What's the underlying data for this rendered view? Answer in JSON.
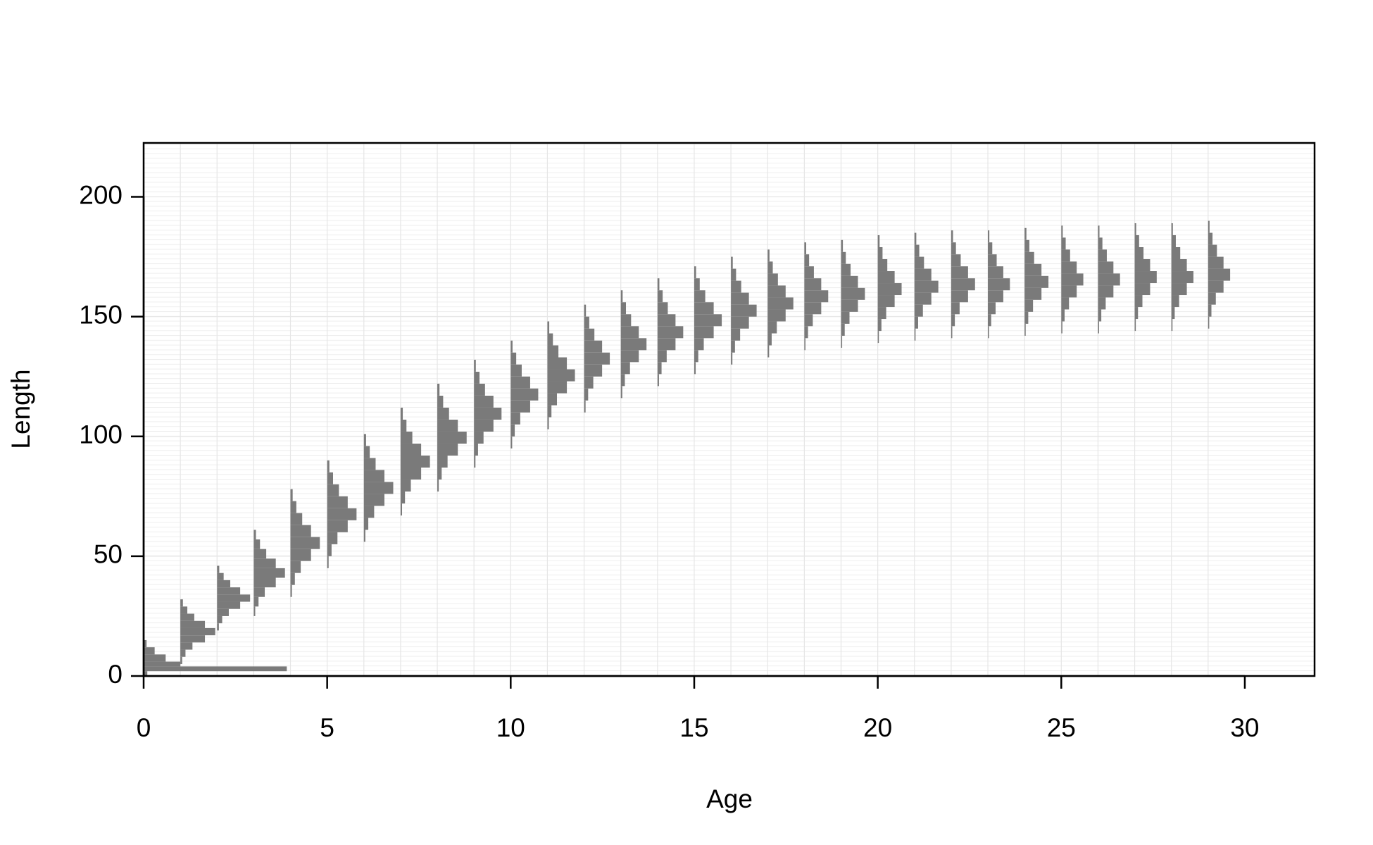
{
  "chart_data": {
    "type": "age-length-histograms",
    "xlabel": "Age",
    "ylabel": "Length",
    "xlim": [
      0,
      31.9
    ],
    "ylim": [
      0,
      222.5
    ],
    "xticks": [
      0,
      5,
      10,
      15,
      20,
      25,
      30
    ],
    "yticks": [
      0,
      50,
      100,
      150,
      200
    ],
    "color": "#7a7a7a",
    "grid": true,
    "distributions": [
      {
        "age": 0,
        "bins": [
          0,
          2,
          4,
          6,
          9,
          12,
          15
        ],
        "widths": [
          0.1,
          3.9,
          1.0,
          0.6,
          0.3,
          0.08
        ]
      },
      {
        "age": 1,
        "bins": [
          5,
          8,
          11,
          14,
          17,
          20,
          23,
          26,
          29,
          32
        ],
        "widths": [
          0.05,
          0.14,
          0.33,
          0.67,
          0.95,
          0.67,
          0.38,
          0.19,
          0.07
        ]
      },
      {
        "age": 2,
        "bins": [
          19,
          22,
          25,
          28,
          31,
          34,
          37,
          40,
          43,
          46
        ],
        "widths": [
          0.05,
          0.14,
          0.32,
          0.63,
          0.9,
          0.63,
          0.36,
          0.18,
          0.06
        ]
      },
      {
        "age": 3,
        "bins": [
          25,
          29,
          33,
          37,
          41,
          45,
          49,
          53,
          57,
          61
        ],
        "widths": [
          0.04,
          0.13,
          0.3,
          0.6,
          0.85,
          0.6,
          0.34,
          0.17,
          0.06
        ]
      },
      {
        "age": 4,
        "bins": [
          33,
          38,
          43,
          48,
          53,
          58,
          63,
          68,
          73,
          78
        ],
        "widths": [
          0.04,
          0.12,
          0.28,
          0.56,
          0.8,
          0.56,
          0.32,
          0.16,
          0.06
        ]
      },
      {
        "age": 5,
        "bins": [
          45,
          50,
          55,
          60,
          65,
          70,
          75,
          80,
          85,
          90
        ],
        "widths": [
          0.04,
          0.12,
          0.28,
          0.56,
          0.8,
          0.56,
          0.32,
          0.16,
          0.06
        ]
      },
      {
        "age": 6,
        "bins": [
          56,
          61,
          66,
          71,
          76,
          81,
          86,
          91,
          96,
          101
        ],
        "widths": [
          0.04,
          0.12,
          0.28,
          0.56,
          0.8,
          0.56,
          0.32,
          0.16,
          0.06
        ]
      },
      {
        "age": 7,
        "bins": [
          67,
          72,
          77,
          82,
          87,
          92,
          97,
          102,
          107,
          112
        ],
        "widths": [
          0.04,
          0.12,
          0.28,
          0.56,
          0.8,
          0.56,
          0.32,
          0.16,
          0.06
        ]
      },
      {
        "age": 8,
        "bins": [
          77,
          82,
          87,
          92,
          97,
          102,
          107,
          112,
          117,
          122
        ],
        "widths": [
          0.04,
          0.12,
          0.28,
          0.56,
          0.8,
          0.56,
          0.32,
          0.16,
          0.06
        ]
      },
      {
        "age": 9,
        "bins": [
          87,
          92,
          97,
          102,
          107,
          112,
          117,
          122,
          127,
          132
        ],
        "widths": [
          0.04,
          0.11,
          0.26,
          0.53,
          0.75,
          0.53,
          0.3,
          0.15,
          0.05
        ]
      },
      {
        "age": 10,
        "bins": [
          95,
          100,
          105,
          110,
          115,
          120,
          125,
          130,
          135,
          140
        ],
        "widths": [
          0.04,
          0.11,
          0.26,
          0.53,
          0.75,
          0.53,
          0.3,
          0.15,
          0.05
        ]
      },
      {
        "age": 11,
        "bins": [
          103,
          108,
          113,
          118,
          123,
          128,
          133,
          138,
          143,
          148
        ],
        "widths": [
          0.04,
          0.11,
          0.26,
          0.53,
          0.75,
          0.53,
          0.3,
          0.15,
          0.05
        ]
      },
      {
        "age": 12,
        "bins": [
          110,
          115,
          120,
          125,
          130,
          135,
          140,
          145,
          150,
          155
        ],
        "widths": [
          0.04,
          0.11,
          0.25,
          0.49,
          0.7,
          0.49,
          0.28,
          0.14,
          0.05
        ]
      },
      {
        "age": 13,
        "bins": [
          116,
          121,
          126,
          131,
          136,
          141,
          146,
          151,
          156,
          161
        ],
        "widths": [
          0.04,
          0.11,
          0.25,
          0.49,
          0.7,
          0.49,
          0.28,
          0.14,
          0.05
        ]
      },
      {
        "age": 14,
        "bins": [
          121,
          126,
          131,
          136,
          141,
          146,
          151,
          156,
          161,
          166
        ],
        "widths": [
          0.04,
          0.11,
          0.25,
          0.49,
          0.7,
          0.49,
          0.28,
          0.14,
          0.05
        ]
      },
      {
        "age": 15,
        "bins": [
          126,
          131,
          136,
          141,
          146,
          151,
          156,
          161,
          166,
          171
        ],
        "widths": [
          0.04,
          0.11,
          0.26,
          0.53,
          0.75,
          0.53,
          0.3,
          0.15,
          0.05
        ]
      },
      {
        "age": 16,
        "bins": [
          130,
          135,
          140,
          145,
          150,
          155,
          160,
          165,
          170,
          175
        ],
        "widths": [
          0.04,
          0.11,
          0.25,
          0.49,
          0.7,
          0.49,
          0.28,
          0.14,
          0.05
        ]
      },
      {
        "age": 17,
        "bins": [
          133,
          138,
          143,
          148,
          153,
          158,
          163,
          168,
          173,
          178
        ],
        "widths": [
          0.04,
          0.11,
          0.25,
          0.49,
          0.7,
          0.49,
          0.28,
          0.14,
          0.05
        ]
      },
      {
        "age": 18,
        "bins": [
          136,
          141,
          146,
          151,
          156,
          161,
          166,
          171,
          176,
          181
        ],
        "widths": [
          0.03,
          0.1,
          0.23,
          0.46,
          0.65,
          0.46,
          0.26,
          0.13,
          0.05
        ]
      },
      {
        "age": 19,
        "bins": [
          137,
          142,
          147,
          152,
          157,
          162,
          167,
          172,
          177,
          182
        ],
        "widths": [
          0.03,
          0.1,
          0.23,
          0.46,
          0.65,
          0.46,
          0.26,
          0.13,
          0.05
        ]
      },
      {
        "age": 20,
        "bins": [
          139,
          144,
          149,
          154,
          159,
          164,
          169,
          174,
          179,
          184
        ],
        "widths": [
          0.03,
          0.1,
          0.23,
          0.46,
          0.65,
          0.46,
          0.26,
          0.13,
          0.05
        ]
      },
      {
        "age": 21,
        "bins": [
          140,
          145,
          150,
          155,
          160,
          165,
          170,
          175,
          180,
          185
        ],
        "widths": [
          0.03,
          0.1,
          0.23,
          0.46,
          0.65,
          0.46,
          0.26,
          0.13,
          0.05
        ]
      },
      {
        "age": 22,
        "bins": [
          141,
          146,
          151,
          156,
          161,
          166,
          171,
          176,
          181,
          186
        ],
        "widths": [
          0.03,
          0.1,
          0.23,
          0.46,
          0.65,
          0.46,
          0.26,
          0.13,
          0.05
        ]
      },
      {
        "age": 23,
        "bins": [
          141,
          146,
          151,
          156,
          161,
          166,
          171,
          176,
          181,
          186
        ],
        "widths": [
          0.03,
          0.09,
          0.21,
          0.42,
          0.6,
          0.42,
          0.24,
          0.12,
          0.04
        ]
      },
      {
        "age": 24,
        "bins": [
          142,
          147,
          152,
          157,
          162,
          167,
          172,
          177,
          182,
          187
        ],
        "widths": [
          0.03,
          0.1,
          0.23,
          0.46,
          0.65,
          0.46,
          0.26,
          0.13,
          0.05
        ]
      },
      {
        "age": 25,
        "bins": [
          143,
          148,
          153,
          158,
          163,
          168,
          173,
          178,
          183,
          188
        ],
        "widths": [
          0.03,
          0.09,
          0.21,
          0.42,
          0.6,
          0.42,
          0.24,
          0.12,
          0.04
        ]
      },
      {
        "age": 26,
        "bins": [
          143,
          148,
          153,
          158,
          163,
          168,
          173,
          178,
          183,
          188
        ],
        "widths": [
          0.03,
          0.09,
          0.21,
          0.42,
          0.6,
          0.42,
          0.24,
          0.12,
          0.04
        ]
      },
      {
        "age": 27,
        "bins": [
          144,
          149,
          154,
          159,
          164,
          169,
          174,
          179,
          184,
          189
        ],
        "widths": [
          0.03,
          0.09,
          0.21,
          0.42,
          0.6,
          0.42,
          0.24,
          0.12,
          0.04
        ]
      },
      {
        "age": 28,
        "bins": [
          144,
          149,
          154,
          159,
          164,
          169,
          174,
          179,
          184,
          189
        ],
        "widths": [
          0.03,
          0.09,
          0.21,
          0.42,
          0.6,
          0.42,
          0.24,
          0.12,
          0.04
        ]
      },
      {
        "age": 29,
        "bins": [
          145,
          150,
          155,
          160,
          165,
          170,
          175,
          180,
          185,
          190
        ],
        "widths": [
          0.03,
          0.09,
          0.21,
          0.42,
          0.6,
          0.42,
          0.24,
          0.12,
          0.04
        ]
      }
    ]
  }
}
